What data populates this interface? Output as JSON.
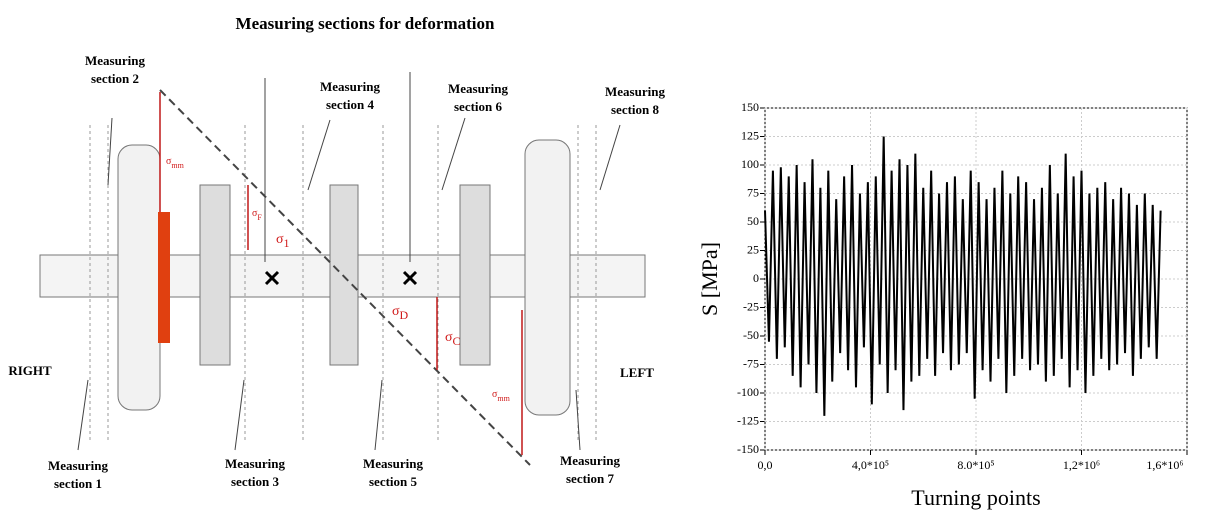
{
  "diagram": {
    "title": "Measuring sections for deformation",
    "sections": [
      {
        "lines": [
          "Measuring",
          "section 2"
        ]
      },
      {
        "lines": [
          "Measuring",
          "section  4"
        ]
      },
      {
        "lines": [
          "Measuring",
          "section 6"
        ]
      },
      {
        "lines": [
          "Measuring",
          "section  8"
        ]
      },
      {
        "lines": [
          "Measuring",
          "section  1"
        ]
      },
      {
        "lines": [
          "Measuring",
          "section 3"
        ]
      },
      {
        "lines": [
          "Measuring",
          "section  5"
        ]
      },
      {
        "lines": [
          "Measuring",
          "section  7"
        ]
      }
    ],
    "sides": [
      "RIGHT",
      "LEFT"
    ],
    "stresses": [
      {
        "symbol": "σ",
        "sub": "mm"
      },
      {
        "symbol": "σ",
        "sub": "F"
      },
      {
        "symbol": "σ",
        "sub": "1"
      },
      {
        "symbol": "σ",
        "sub": "D"
      },
      {
        "symbol": "σ",
        "sub": "C"
      },
      {
        "symbol": "σ",
        "sub": "mm"
      }
    ]
  },
  "chart_data": {
    "type": "line",
    "xlabel": "Turning points",
    "ylabel": "S [MPa]",
    "color": "#000000",
    "grid": true,
    "xlim": [
      0,
      1600000
    ],
    "ylim": [
      -150,
      150
    ],
    "xticks": [
      {
        "value": 0,
        "label": "0,0"
      },
      {
        "value": 400000,
        "label": "4,0*10⁵"
      },
      {
        "value": 800000,
        "label": "8.0*10⁵"
      },
      {
        "value": 1200000,
        "label": "1,2*10⁶"
      },
      {
        "value": 1600000,
        "label": "1,6*10⁶"
      }
    ],
    "yticks": [
      -150,
      -125,
      -100,
      -75,
      -50,
      -25,
      0,
      25,
      50,
      75,
      100,
      125,
      150
    ],
    "x": [
      0,
      15000,
      30000,
      45000,
      60000,
      75000,
      90000,
      105000,
      120000,
      135000,
      150000,
      165000,
      180000,
      195000,
      210000,
      225000,
      240000,
      255000,
      270000,
      285000,
      300000,
      315000,
      330000,
      345000,
      360000,
      375000,
      390000,
      405000,
      420000,
      435000,
      450000,
      465000,
      480000,
      495000,
      510000,
      525000,
      540000,
      555000,
      570000,
      585000,
      600000,
      615000,
      630000,
      645000,
      660000,
      675000,
      690000,
      705000,
      720000,
      735000,
      750000,
      765000,
      780000,
      795000,
      810000,
      825000,
      840000,
      855000,
      870000,
      885000,
      900000,
      915000,
      930000,
      945000,
      960000,
      975000,
      990000,
      1005000,
      1020000,
      1035000,
      1050000,
      1065000,
      1080000,
      1095000,
      1110000,
      1125000,
      1140000,
      1155000,
      1170000,
      1185000,
      1200000,
      1215000,
      1230000,
      1245000,
      1260000,
      1275000,
      1290000,
      1305000,
      1320000,
      1335000,
      1350000,
      1365000,
      1380000,
      1395000,
      1410000,
      1425000,
      1440000,
      1455000,
      1470000,
      1485000,
      1500000
    ],
    "values": [
      60,
      -55,
      95,
      -70,
      98,
      -60,
      90,
      -85,
      100,
      -95,
      85,
      -75,
      105,
      -100,
      80,
      -120,
      95,
      -90,
      70,
      -65,
      90,
      -80,
      100,
      -95,
      75,
      -60,
      85,
      -110,
      90,
      -75,
      125,
      -100,
      95,
      -80,
      105,
      -115,
      100,
      -90,
      110,
      -85,
      80,
      -70,
      95,
      -85,
      75,
      -65,
      85,
      -80,
      90,
      -75,
      70,
      -65,
      95,
      -105,
      85,
      -80,
      70,
      -90,
      80,
      -70,
      95,
      -100,
      75,
      -85,
      90,
      -70,
      85,
      -80,
      70,
      -75,
      80,
      -90,
      100,
      -85,
      75,
      -70,
      110,
      -95,
      90,
      -80,
      95,
      -100,
      75,
      -85,
      80,
      -70,
      85,
      -80,
      70,
      -75,
      80,
      -65,
      75,
      -85,
      65,
      -70,
      75,
      -60,
      65,
      -70,
      60
    ]
  }
}
